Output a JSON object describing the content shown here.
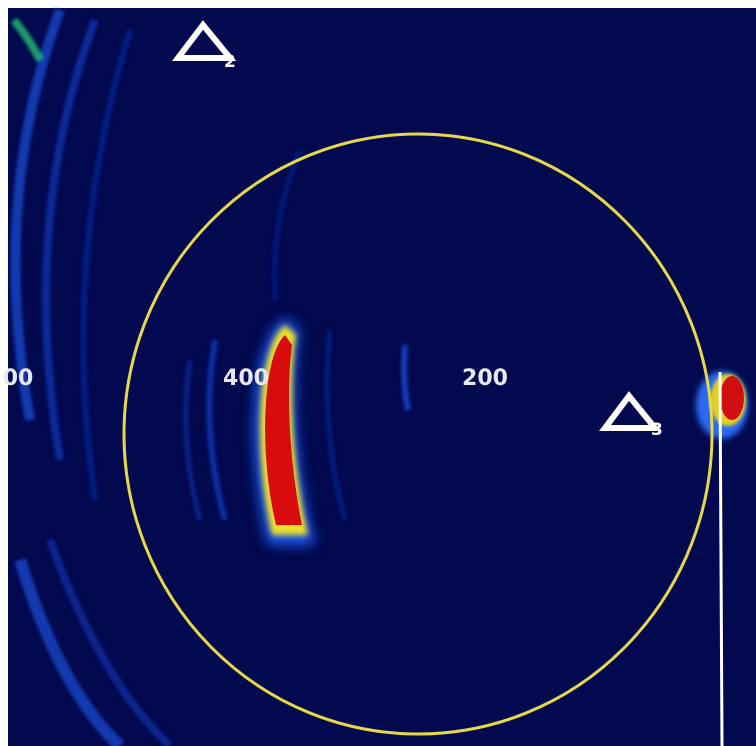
{
  "range_labels": [
    "00",
    "400",
    "200"
  ],
  "markers": [
    {
      "label": "2"
    },
    {
      "label": "3"
    }
  ]
}
